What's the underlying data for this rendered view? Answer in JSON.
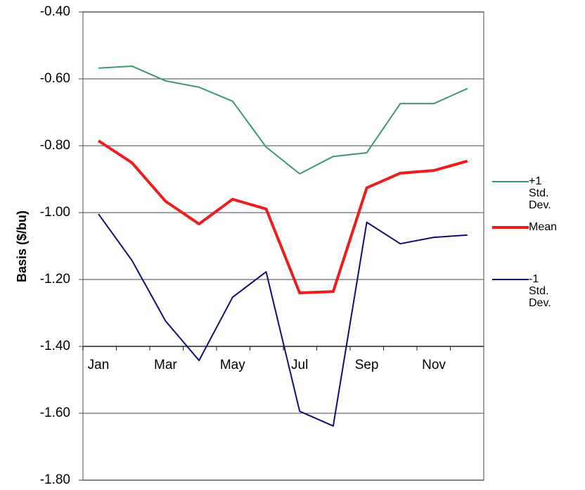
{
  "chart_data": {
    "type": "line",
    "y_label": "Basis ($/bu)",
    "categories": [
      "Jan",
      null,
      "Mar",
      null,
      "May",
      null,
      "Jul",
      null,
      "Sep",
      null,
      "Nov",
      null
    ],
    "series": [
      {
        "name": "+1 Std. Dev.",
        "color": "#3a9a6a",
        "width": 2,
        "values": [
          -0.568,
          -0.562,
          -0.606,
          -0.625,
          -0.667,
          -0.804,
          -0.884,
          -0.832,
          -0.821,
          -0.674,
          -0.674,
          -0.629
        ]
      },
      {
        "name": "Mean",
        "color": "#ee1c1c",
        "width": 4,
        "values": [
          -0.785,
          -0.851,
          -0.966,
          -1.034,
          -0.96,
          -0.989,
          -1.24,
          -1.236,
          -0.926,
          -0.882,
          -0.874,
          -0.846
        ]
      },
      {
        "name": "-1 Std. Dev.",
        "color": "#0d0d7a",
        "width": 2,
        "values": [
          -1.004,
          -1.143,
          -1.324,
          -1.442,
          -1.253,
          -1.177,
          -1.594,
          -1.638,
          -1.029,
          -1.093,
          -1.074,
          -1.067
        ]
      }
    ],
    "ylim": [
      -1.8,
      -0.4
    ],
    "yticks": [
      {
        "value": -1.8,
        "label": "-1.80"
      },
      {
        "value": -1.6,
        "label": "-1.60"
      },
      {
        "value": -1.4,
        "label": "-1.40"
      },
      {
        "value": -1.2,
        "label": "-1.20"
      },
      {
        "value": -1.0,
        "label": "-1.00"
      },
      {
        "value": -0.8,
        "label": "-0.80"
      },
      {
        "value": -0.6,
        "label": "-0.60"
      },
      {
        "value": -0.4,
        "label": "-0.40"
      }
    ],
    "x_axis_at": -1.4,
    "grid": true
  }
}
